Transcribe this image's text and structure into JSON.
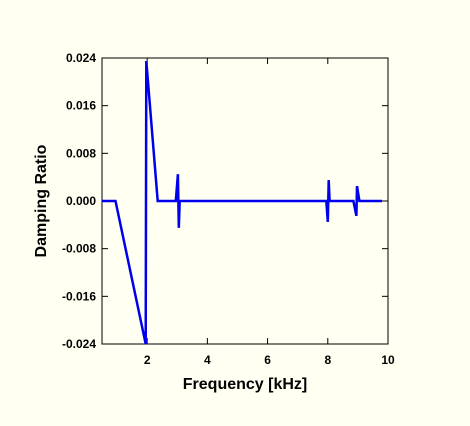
{
  "chart_data": {
    "type": "line",
    "title": "",
    "xlabel": "Frequency [kHz]",
    "ylabel": "Damping Ratio",
    "xlim": [
      0.5,
      10
    ],
    "ylim": [
      -0.024,
      0.024
    ],
    "xticks": [
      2,
      4,
      6,
      8,
      10
    ],
    "xtick_labels": [
      "2",
      "4",
      "6",
      "8",
      "10"
    ],
    "yticks": [
      -0.024,
      -0.016,
      -0.008,
      0.0,
      0.008,
      0.016,
      0.024
    ],
    "ytick_labels": [
      "-0.024",
      "-0.016",
      "-0.008",
      "0.000",
      "0.008",
      "0.016",
      "0.024"
    ],
    "grid": false,
    "legend": "none",
    "series": [
      {
        "color": "#0000ee",
        "x": [
          0.5,
          0.95,
          1.95,
          1.97,
          2.35,
          2.45,
          2.95,
          3.02,
          3.05,
          3.08,
          3.15,
          7.95,
          8.0,
          8.03,
          8.06,
          8.1,
          8.85,
          8.95,
          8.97,
          9.05,
          9.15,
          9.8
        ],
        "y": [
          0.0,
          0.0,
          -0.024,
          0.0235,
          0.0,
          0.0,
          0.0,
          0.0045,
          -0.0045,
          0.0,
          0.0,
          0.0,
          -0.0035,
          0.0035,
          0.0,
          0.0,
          0.0,
          -0.0025,
          0.0025,
          0.0,
          0.0,
          0.0
        ]
      }
    ]
  }
}
